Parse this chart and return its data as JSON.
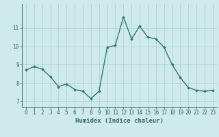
{
  "x": [
    0,
    1,
    2,
    3,
    4,
    5,
    6,
    7,
    8,
    9,
    10,
    11,
    12,
    13,
    14,
    15,
    16,
    17,
    18,
    19,
    20,
    21,
    22,
    23
  ],
  "y": [
    8.7,
    8.9,
    8.75,
    8.35,
    7.8,
    7.95,
    7.65,
    7.55,
    7.15,
    7.55,
    9.95,
    10.05,
    11.6,
    10.4,
    11.1,
    10.5,
    10.4,
    9.95,
    9.0,
    8.3,
    7.75,
    7.6,
    7.55,
    7.6
  ],
  "line_color": "#2d7a6e",
  "marker": "D",
  "marker_size": 1.8,
  "bg_color": "#ceeaea",
  "grid_color": "#aacfcf",
  "axis_color": "#336666",
  "xlabel": "Humidex (Indice chaleur)",
  "ylim": [
    6.7,
    12.3
  ],
  "xlim": [
    -0.5,
    23.5
  ],
  "yticks": [
    7,
    8,
    9,
    10,
    11
  ],
  "xticks": [
    0,
    1,
    2,
    3,
    4,
    5,
    6,
    7,
    8,
    9,
    10,
    11,
    12,
    13,
    14,
    15,
    16,
    17,
    18,
    19,
    20,
    21,
    22,
    23
  ],
  "tick_fontsize": 5.5,
  "xlabel_fontsize": 6.5,
  "line_width": 1.0
}
